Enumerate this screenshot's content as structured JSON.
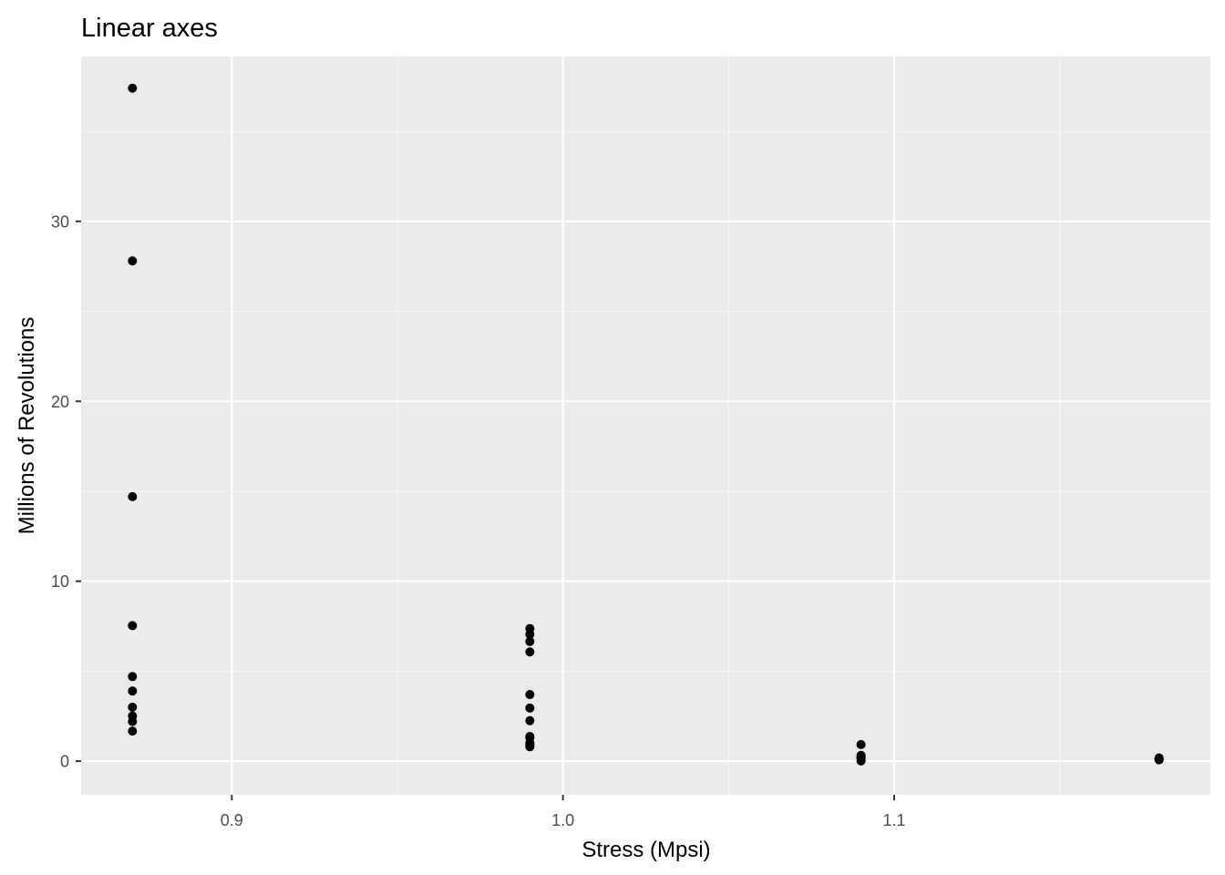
{
  "chart_data": {
    "type": "scatter",
    "title": "Linear axes",
    "xlabel": "Stress (Mpsi)",
    "ylabel": "Millions of Revolutions",
    "xlim": [
      0.8545,
      1.1955
    ],
    "ylim": [
      -1.87,
      39.16
    ],
    "x_ticks": [
      0.9,
      1.0,
      1.1
    ],
    "x_tick_labels": [
      "0.9",
      "1.0",
      "1.1"
    ],
    "y_ticks": [
      0,
      10,
      20,
      30
    ],
    "y_tick_labels": [
      "0",
      "10",
      "20",
      "30"
    ],
    "grid": true,
    "legend": "none",
    "colors": {
      "panel_background": "#ebebeb",
      "grid_major": "#ffffff",
      "grid_minor": "#f5f5f5",
      "point": "#000000",
      "tick": "#333333"
    },
    "series": [
      {
        "x": [
          0.87,
          0.87,
          0.87,
          0.87,
          0.87,
          0.87,
          0.87,
          0.87,
          0.87,
          0.87,
          0.99,
          0.99,
          0.99,
          0.99,
          0.99,
          0.99,
          0.99,
          0.99,
          0.99,
          0.99,
          0.99,
          0.99,
          1.09,
          1.09,
          1.09,
          1.09,
          1.09,
          1.09,
          1.09,
          1.18,
          1.18,
          1.18,
          1.18,
          1.18
        ],
        "y": [
          1.67,
          2.2,
          2.51,
          3.0,
          3.9,
          4.7,
          7.53,
          14.7,
          27.8,
          37.4,
          0.8,
          1.0,
          1.37,
          2.25,
          2.95,
          3.7,
          6.07,
          6.65,
          7.05,
          7.37,
          1.3,
          0.9,
          0.012,
          0.18,
          0.2,
          0.24,
          0.26,
          0.32,
          0.92,
          0.073,
          0.098,
          0.117,
          0.135,
          0.175
        ]
      }
    ]
  }
}
